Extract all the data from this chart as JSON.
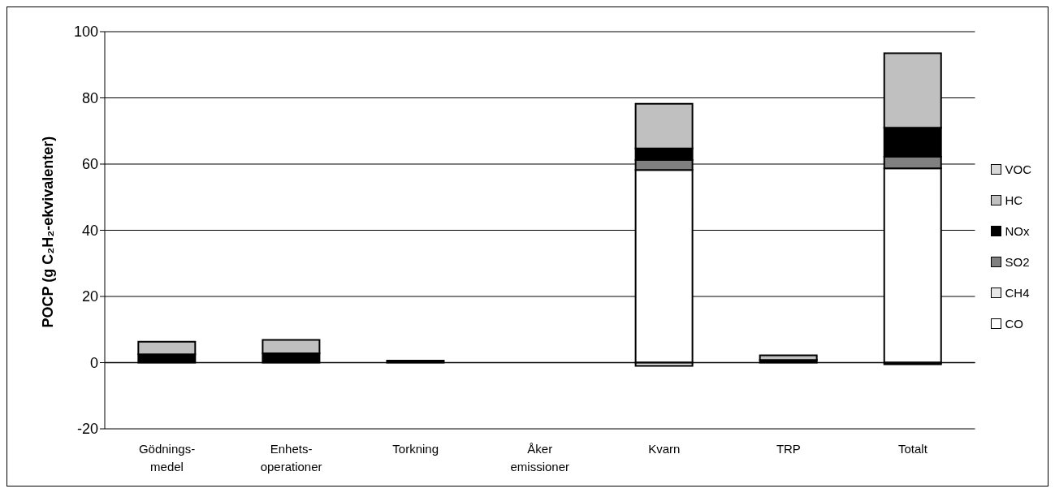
{
  "chart_data": {
    "type": "bar",
    "stacked": true,
    "ylabel": "POCP (g C₂H₂-ekvivalenter)",
    "categories": [
      "Gödnings- medel",
      "Enhets- operationer",
      "Torkning",
      "Åker emissioner",
      "Kvarn",
      "TRP",
      "Totalt"
    ],
    "series": [
      {
        "name": "CO",
        "color": "#ffffff",
        "values": [
          0,
          0,
          0,
          0,
          58.2,
          0,
          58.7
        ]
      },
      {
        "name": "CH4",
        "color": "#e8e8e8",
        "values": [
          0,
          0,
          0,
          0,
          -1,
          0,
          -0.5
        ]
      },
      {
        "name": "SO2",
        "color": "#808080",
        "values": [
          0,
          0,
          0,
          0,
          3,
          0,
          3.5
        ]
      },
      {
        "name": "NOx",
        "color": "#000000",
        "values": [
          2.5,
          2.8,
          0.6,
          0,
          3.5,
          0.8,
          8.8
        ]
      },
      {
        "name": "HC",
        "color": "#c0c0c0",
        "values": [
          3.8,
          4.1,
          0,
          0,
          13.5,
          1.4,
          22.5
        ]
      },
      {
        "name": "VOC",
        "color": "#d8d8d8",
        "values": [
          0,
          0,
          0,
          0,
          0,
          0,
          0
        ]
      }
    ],
    "ylim": [
      -20,
      100
    ],
    "yticks": [
      -20,
      0,
      20,
      40,
      60,
      80,
      100
    ],
    "grid": "y",
    "legend": "right"
  }
}
